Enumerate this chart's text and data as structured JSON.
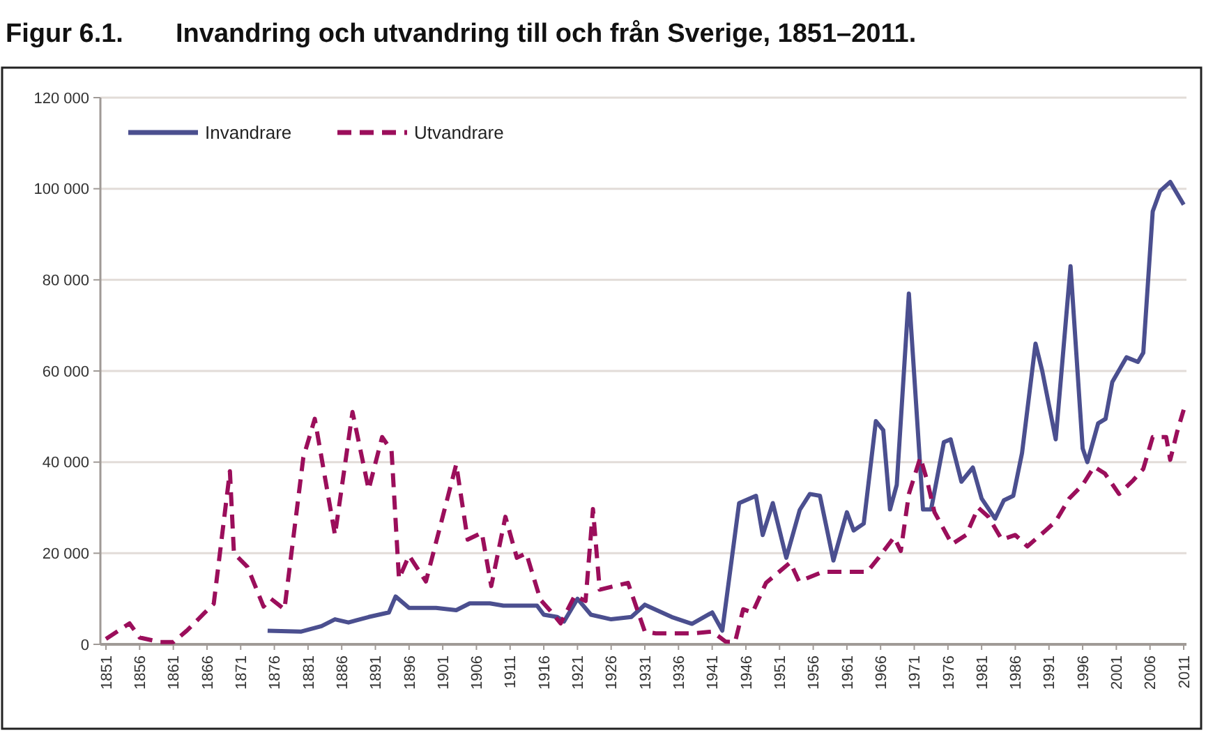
{
  "chart_data": {
    "type": "line",
    "title": "Figur 6.1.\tInvandring och utvandring till och från Sverige, 1851–2011.",
    "xlim": [
      1851,
      2011
    ],
    "xticks": [
      1851,
      1856,
      1861,
      1866,
      1871,
      1876,
      1881,
      1886,
      1891,
      1896,
      1901,
      1906,
      1911,
      1916,
      1921,
      1926,
      1931,
      1936,
      1941,
      1946,
      1951,
      1956,
      1961,
      1966,
      1971,
      1976,
      1981,
      1986,
      1991,
      1996,
      2001,
      2006,
      2011
    ],
    "ylim": [
      0,
      120000
    ],
    "yticks": [
      0,
      {
        "value": 20000,
        "label": "20 000"
      },
      {
        "value": 40000,
        "label": "40 000"
      },
      {
        "value": 60000,
        "label": "60 000"
      },
      {
        "value": 80000,
        "label": "80 000"
      },
      {
        "value": 100000,
        "label": "100 000"
      },
      {
        "value": 120000,
        "label": "120 000"
      }
    ],
    "grid": "y",
    "legend": "top left",
    "series": [
      {
        "name": "Invandrare",
        "color": "#4b4f8f",
        "line_style": "solid",
        "x": [
          1875,
          1880,
          1883,
          1885,
          1887,
          1890,
          1893,
          1894,
          1896,
          1900,
          1903,
          1905,
          1908,
          1910,
          1913,
          1915,
          1916,
          1918,
          1919,
          1921,
          1923,
          1926,
          1929,
          1931,
          1935,
          1938,
          1941,
          1942.5,
          1945,
          1947.5,
          1948.5,
          1950,
          1952,
          1954,
          1955.5,
          1957,
          1959,
          1961,
          1962,
          1963.5,
          1965.3,
          1966.4,
          1967.4,
          1968.4,
          1970.2,
          1972.3,
          1973.5,
          1975.4,
          1976.4,
          1978,
          1979.7,
          1981,
          1983,
          1984.3,
          1985.7,
          1987,
          1989,
          1990,
          1992,
          1994.2,
          1996,
          1996.7,
          1998.3,
          1999.4,
          2000.4,
          2002.5,
          2004.2,
          2005,
          2006.4,
          2007.5,
          2009,
          2011
        ],
        "values": [
          3000,
          2800,
          4000,
          5500,
          4800,
          6000,
          7000,
          10500,
          8000,
          8000,
          7500,
          9000,
          9000,
          8500,
          8500,
          8500,
          6500,
          6000,
          5000,
          10000,
          6500,
          5500,
          6000,
          8700,
          6000,
          4500,
          7000,
          3000,
          31000,
          32600,
          24000,
          31000,
          19000,
          29500,
          33000,
          32600,
          18400,
          29000,
          25000,
          26500,
          49000,
          47000,
          29600,
          35000,
          77000,
          29600,
          29600,
          44400,
          45000,
          35700,
          38800,
          32000,
          27600,
          31600,
          32600,
          42000,
          66000,
          60000,
          45000,
          83000,
          43000,
          40000,
          48500,
          49500,
          57600,
          63000,
          62000,
          64000,
          95000,
          99500,
          101500,
          96500
        ]
      },
      {
        "name": "Utvandrare",
        "color": "#9b0e5b",
        "line_style": "dashed",
        "x": [
          1851,
          1854.5,
          1856,
          1859,
          1861,
          1863,
          1865.5,
          1867,
          1869.4,
          1870,
          1872,
          1874.4,
          1875.5,
          1877.5,
          1880.3,
          1882,
          1885,
          1887.6,
          1890,
          1892,
          1893.4,
          1894.5,
          1896,
          1898.5,
          1903,
          1904.7,
          1906.8,
          1908.2,
          1910.3,
          1912,
          1913.4,
          1915.5,
          1917,
          1918.5,
          1920.6,
          1922.2,
          1923.3,
          1924.3,
          1928.5,
          1931,
          1932.6,
          1938,
          1941,
          1943,
          1944.4,
          1945.6,
          1947,
          1949,
          1952.6,
          1953.9,
          1957.4,
          1960,
          1964,
          1965.7,
          1968,
          1969,
          1970.2,
          1971.9,
          1972.9,
          1974,
          1976.6,
          1978.7,
          1980.5,
          1982,
          1984,
          1986,
          1987.8,
          1990.5,
          1992,
          1994,
          1996,
          1997.7,
          1999.3,
          2001.4,
          2003.5,
          2005,
          2006.4,
          2008.4,
          2009,
          2010,
          2011
        ],
        "values": [
          1200,
          4600,
          1500,
          500,
          500,
          3000,
          6700,
          8900,
          38000,
          20000,
          17000,
          8300,
          10000,
          7700,
          41000,
          49500,
          24000,
          51000,
          34000,
          45500,
          42500,
          14400,
          19500,
          13800,
          39500,
          23000,
          24500,
          12800,
          28000,
          19000,
          20000,
          9800,
          7300,
          4600,
          10700,
          9500,
          29700,
          12000,
          13500,
          2800,
          2400,
          2400,
          2800,
          600,
          500,
          7700,
          7000,
          13500,
          18000,
          13800,
          15900,
          15900,
          15900,
          19000,
          23500,
          20500,
          33000,
          41000,
          36000,
          29000,
          22000,
          24000,
          30000,
          28000,
          23000,
          24000,
          21500,
          25000,
          27000,
          32000,
          35000,
          39000,
          37500,
          33000,
          36000,
          38500,
          45500,
          45500,
          40500,
          46500,
          51500
        ]
      }
    ]
  }
}
